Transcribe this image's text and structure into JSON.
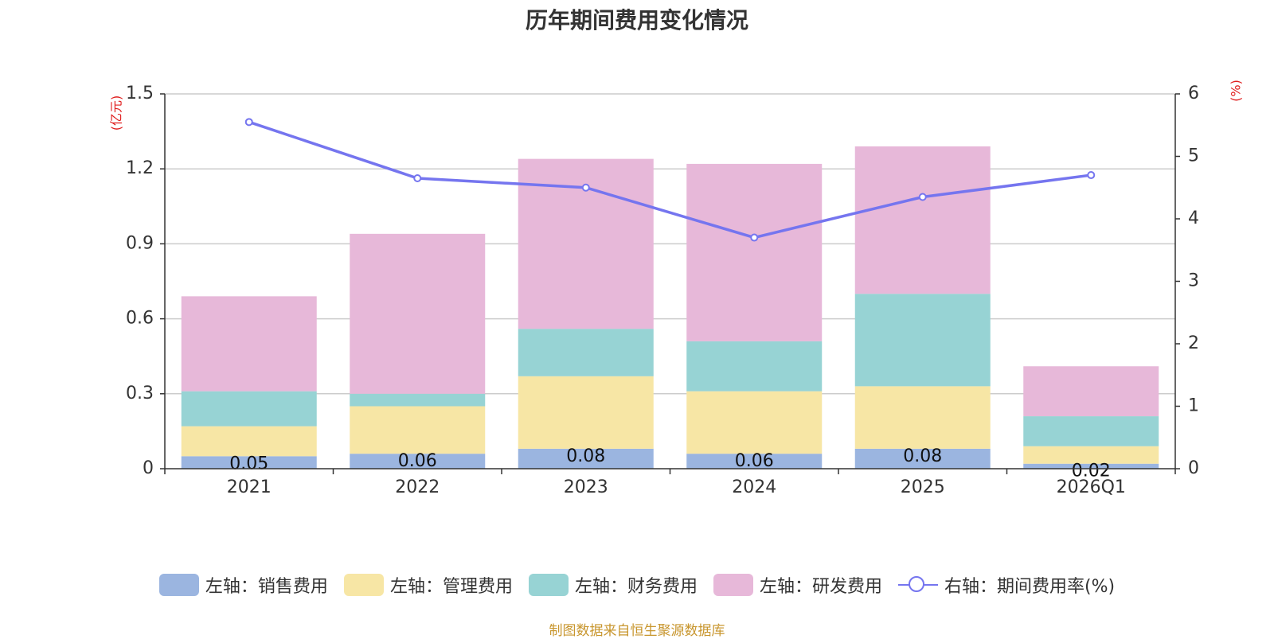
{
  "chart_data": {
    "type": "bar",
    "title": "历年期间费用变化情况",
    "categories": [
      "2021",
      "2022",
      "2023",
      "2024",
      "2025",
      "2026Q1"
    ],
    "series": [
      {
        "name": "左轴：销售费用",
        "axis": "left",
        "stack": true,
        "color": "#9bb5e0",
        "values": [
          0.05,
          0.06,
          0.08,
          0.06,
          0.08,
          0.02
        ],
        "labels": [
          "0.05",
          "0.06",
          "0.08",
          "0.06",
          "0.08",
          "0.02"
        ]
      },
      {
        "name": "左轴：管理费用",
        "axis": "left",
        "stack": true,
        "color": "#f7e6a5",
        "values": [
          0.12,
          0.19,
          0.29,
          0.25,
          0.25,
          0.07
        ]
      },
      {
        "name": "左轴：财务费用",
        "axis": "left",
        "stack": true,
        "color": "#97d3d4",
        "values": [
          0.14,
          0.05,
          0.19,
          0.2,
          0.37,
          0.12
        ]
      },
      {
        "name": "左轴：研发费用",
        "axis": "left",
        "stack": true,
        "color": "#e7b8d9",
        "values": [
          0.38,
          0.64,
          0.68,
          0.71,
          0.59,
          0.2
        ]
      },
      {
        "name": "右轴：期间费用率(%)",
        "axis": "right",
        "type": "line",
        "color": "#7575ef",
        "values": [
          5.55,
          4.65,
          4.5,
          3.7,
          4.35,
          4.7
        ]
      }
    ],
    "y_left": {
      "label": "(亿元)",
      "min": 0,
      "max": 1.5,
      "ticks": [
        0,
        0.3,
        0.6,
        0.9,
        1.2,
        1.5
      ],
      "tick_labels": [
        "0",
        "0.3",
        "0.6",
        "0.9",
        "1.2",
        "1.5"
      ]
    },
    "y_right": {
      "label": "(%)",
      "min": 0,
      "max": 6,
      "ticks": [
        0,
        1,
        2,
        3,
        4,
        5,
        6
      ],
      "tick_labels": [
        "0",
        "1",
        "2",
        "3",
        "4",
        "5",
        "6"
      ]
    },
    "grid": true,
    "legend_position": "bottom"
  },
  "source_text": "制图数据来自恒生聚源数据库"
}
